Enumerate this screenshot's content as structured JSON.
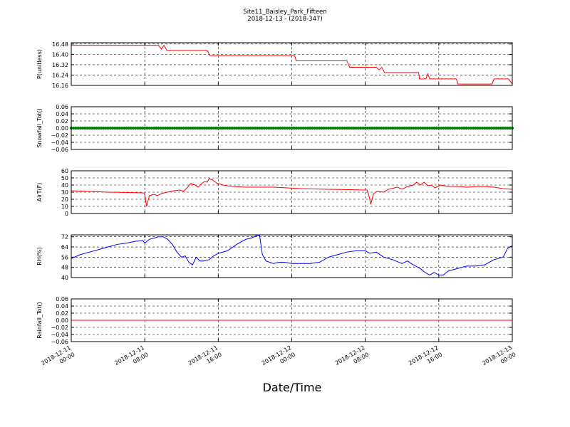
{
  "title": {
    "line1": "Site11_Baisley_Park_Fifteen",
    "line2": "2018-12-13 - (2018-347)"
  },
  "xlabel": "Date/Time",
  "x_ticks": [
    {
      "t": 0,
      "line1": "2018-12-11",
      "line2": "00:00"
    },
    {
      "t": 8,
      "line1": "2018-12-11",
      "line2": "08:00"
    },
    {
      "t": 16,
      "line1": "2018-12-11",
      "line2": "16:00"
    },
    {
      "t": 24,
      "line1": "2018-12-12",
      "line2": "00:00"
    },
    {
      "t": 32,
      "line1": "2018-12-12",
      "line2": "08:00"
    },
    {
      "t": 40,
      "line1": "2018-12-12",
      "line2": "16:00"
    },
    {
      "t": 48,
      "line1": "2018-12-13",
      "line2": "00:00"
    }
  ],
  "chart_data": [
    {
      "type": "line",
      "ylabel": "P(unitless)",
      "ylim": [
        16.16,
        16.49
      ],
      "yticks": [
        "16.48",
        "16.40",
        "16.32",
        "16.24",
        "16.16"
      ],
      "ytick_values": [
        16.48,
        16.4,
        16.32,
        16.24,
        16.16
      ],
      "grid": true,
      "series": [
        {
          "color": "#ff0000",
          "points": [
            [
              0,
              16.47
            ],
            [
              9.5,
              16.47
            ],
            [
              9.8,
              16.44
            ],
            [
              10.1,
              16.47
            ],
            [
              10.4,
              16.43
            ],
            [
              14.8,
              16.43
            ],
            [
              15.1,
              16.39
            ],
            [
              24.3,
              16.39
            ],
            [
              24.5,
              16.35
            ],
            [
              30.0,
              16.35
            ],
            [
              30.3,
              16.3
            ],
            [
              33.2,
              16.3
            ],
            [
              33.5,
              16.28
            ],
            [
              33.8,
              16.3
            ],
            [
              34.1,
              16.26
            ],
            [
              37.8,
              16.26
            ],
            [
              37.9,
              16.21
            ],
            [
              38.6,
              16.21
            ],
            [
              38.8,
              16.25
            ],
            [
              39.0,
              16.21
            ],
            [
              41.9,
              16.21
            ],
            [
              42.1,
              16.17
            ],
            [
              45.8,
              16.17
            ],
            [
              46.0,
              16.21
            ],
            [
              47.6,
              16.21
            ],
            [
              48.0,
              16.17
            ]
          ]
        }
      ]
    },
    {
      "type": "scatter",
      "ylabel": "Snowfall_Tot()",
      "ylim": [
        -0.06,
        0.06
      ],
      "yticks": [
        "0.06",
        "0.04",
        "0.02",
        "0.00",
        "−0.02",
        "−0.04",
        "−0.06"
      ],
      "ytick_values": [
        0.06,
        0.04,
        0.02,
        0.0,
        -0.02,
        -0.04,
        -0.06
      ],
      "grid": true,
      "series": [
        {
          "color": "#008000",
          "x_start": 0,
          "x_end": 48,
          "interval_hours": 0.25,
          "value": 0.0
        }
      ]
    },
    {
      "type": "line",
      "ylabel": "AirT(F)",
      "ylim": [
        0,
        60
      ],
      "yticks": [
        "60",
        "50",
        "40",
        "30",
        "20",
        "10",
        "0"
      ],
      "ytick_values": [
        60,
        50,
        40,
        30,
        20,
        10,
        0
      ],
      "grid": true,
      "series": [
        {
          "color": "#ff0000",
          "points": [
            [
              0,
              32
            ],
            [
              2,
              31
            ],
            [
              4,
              30
            ],
            [
              6,
              29.5
            ],
            [
              7.8,
              29
            ],
            [
              8,
              27
            ],
            [
              8.2,
              10
            ],
            [
              8.5,
              25
            ],
            [
              9,
              27
            ],
            [
              9.4,
              25
            ],
            [
              9.8,
              28
            ],
            [
              10.5,
              30
            ],
            [
              11.2,
              32
            ],
            [
              11.8,
              33
            ],
            [
              12.2,
              31
            ],
            [
              12.6,
              36
            ],
            [
              13,
              42
            ],
            [
              13.5,
              40
            ],
            [
              13.8,
              37
            ],
            [
              14.2,
              42
            ],
            [
              14.5,
              45
            ],
            [
              14.8,
              44
            ],
            [
              15,
              49
            ],
            [
              15.4,
              47
            ],
            [
              15.8,
              43
            ],
            [
              16.5,
              40
            ],
            [
              17.5,
              38
            ],
            [
              19,
              37
            ],
            [
              22,
              37
            ],
            [
              25,
              35
            ],
            [
              28,
              34
            ],
            [
              32,
              33
            ],
            [
              32.2,
              33
            ],
            [
              32.4,
              25
            ],
            [
              32.6,
              13
            ],
            [
              32.9,
              28
            ],
            [
              33.3,
              31
            ],
            [
              34,
              30
            ],
            [
              34.5,
              34
            ],
            [
              35.5,
              37
            ],
            [
              36,
              34
            ],
            [
              36.6,
              38
            ],
            [
              37.2,
              40
            ],
            [
              37.6,
              44
            ],
            [
              38,
              40
            ],
            [
              38.4,
              44
            ],
            [
              38.8,
              39
            ],
            [
              39.2,
              40
            ],
            [
              39.6,
              36
            ],
            [
              40.2,
              40
            ],
            [
              41,
              38
            ],
            [
              42,
              38
            ],
            [
              43,
              37
            ],
            [
              44.5,
              38
            ],
            [
              46,
              37
            ],
            [
              47,
              35
            ],
            [
              48,
              34
            ]
          ]
        }
      ]
    },
    {
      "type": "line",
      "ylabel": "RH(%)",
      "ylim": [
        40,
        73.5
      ],
      "yticks": [
        "72",
        "64",
        "56",
        "48",
        "40"
      ],
      "ytick_values": [
        72,
        64,
        56,
        48,
        40
      ],
      "grid": true,
      "series": [
        {
          "color": "#0000ff",
          "points": [
            [
              0,
              55
            ],
            [
              1,
              58
            ],
            [
              2,
              60
            ],
            [
              3,
              62
            ],
            [
              4,
              64
            ],
            [
              5,
              66
            ],
            [
              6,
              67
            ],
            [
              7,
              68.5
            ],
            [
              7.8,
              69
            ],
            [
              8,
              67
            ],
            [
              8.5,
              70
            ],
            [
              9,
              71
            ],
            [
              9.5,
              72
            ],
            [
              10,
              72
            ],
            [
              10.5,
              70
            ],
            [
              11,
              66
            ],
            [
              11.5,
              60
            ],
            [
              12,
              56
            ],
            [
              12.4,
              57
            ],
            [
              12.8,
              52
            ],
            [
              13.2,
              50
            ],
            [
              13.6,
              56
            ],
            [
              14,
              53
            ],
            [
              14.4,
              53
            ],
            [
              15,
              54
            ],
            [
              15.5,
              57
            ],
            [
              16,
              59
            ],
            [
              17,
              61
            ],
            [
              18,
              66
            ],
            [
              19,
              70
            ],
            [
              19.6,
              71
            ],
            [
              20.2,
              73
            ],
            [
              20.5,
              73
            ],
            [
              20.8,
              58
            ],
            [
              21.2,
              53
            ],
            [
              22,
              51
            ],
            [
              22.6,
              52
            ],
            [
              23.2,
              52
            ],
            [
              24,
              51
            ],
            [
              25,
              51
            ],
            [
              26,
              51
            ],
            [
              27,
              52
            ],
            [
              28,
              56
            ],
            [
              29,
              58
            ],
            [
              30,
              60
            ],
            [
              31,
              61
            ],
            [
              32,
              61
            ],
            [
              32.5,
              59
            ],
            [
              33.2,
              60
            ],
            [
              34,
              56
            ],
            [
              35,
              54
            ],
            [
              36,
              51
            ],
            [
              36.6,
              53
            ],
            [
              37,
              51
            ],
            [
              37.5,
              49
            ],
            [
              38,
              47
            ],
            [
              38.5,
              44
            ],
            [
              39,
              42
            ],
            [
              39.5,
              44
            ],
            [
              40,
              42
            ],
            [
              40.5,
              42
            ],
            [
              41,
              45
            ],
            [
              41.5,
              46
            ],
            [
              42,
              47
            ],
            [
              43,
              49
            ],
            [
              44,
              49
            ],
            [
              45,
              50
            ],
            [
              46,
              54
            ],
            [
              47,
              56
            ],
            [
              47.5,
              63
            ],
            [
              48,
              65
            ]
          ]
        }
      ]
    },
    {
      "type": "line",
      "ylabel": "Rainfall_Tot()",
      "ylim": [
        -0.06,
        0.06
      ],
      "yticks": [
        "0.06",
        "0.04",
        "0.02",
        "0.00",
        "−0.02",
        "−0.04",
        "−0.06"
      ],
      "ytick_values": [
        0.06,
        0.04,
        0.02,
        0.0,
        -0.02,
        -0.04,
        -0.06
      ],
      "grid": true,
      "series": [
        {
          "color": "#ff0000",
          "points": [
            [
              0,
              0
            ],
            [
              48,
              0
            ]
          ]
        }
      ]
    }
  ]
}
